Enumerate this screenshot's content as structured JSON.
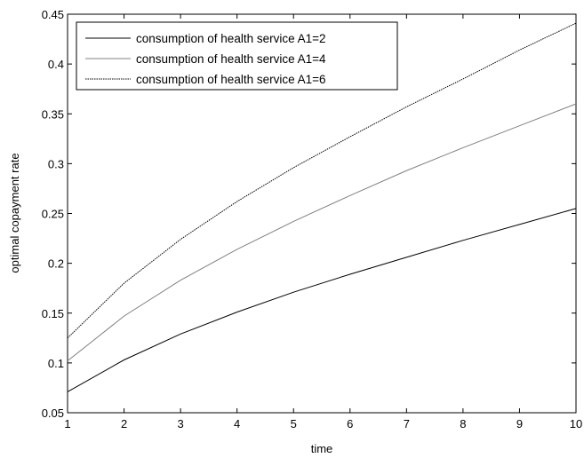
{
  "chart_data": {
    "type": "line",
    "xlabel": "time",
    "ylabel": "optimal copayment rate",
    "xlim": [
      1,
      10
    ],
    "ylim": [
      0.05,
      0.45
    ],
    "xticks": [
      "1",
      "2",
      "3",
      "4",
      "5",
      "6",
      "7",
      "8",
      "9",
      "10"
    ],
    "yticks": [
      "0.05",
      "0.1",
      "0.15",
      "0.2",
      "0.25",
      "0.3",
      "0.35",
      "0.4",
      "0.45"
    ],
    "grid": false,
    "legend_position": "top-left",
    "x": [
      1,
      2,
      3,
      4,
      5,
      6,
      7,
      8,
      9,
      10
    ],
    "series": [
      {
        "name": "consumption of health service A1=2",
        "color": "#000000",
        "values": [
          0.071,
          0.103,
          0.129,
          0.151,
          0.171,
          0.189,
          0.206,
          0.223,
          0.239,
          0.255
        ]
      },
      {
        "name": "consumption of health service A1=4",
        "color": "#808080",
        "values": [
          0.102,
          0.147,
          0.183,
          0.214,
          0.242,
          0.268,
          0.293,
          0.316,
          0.338,
          0.36
        ]
      },
      {
        "name": "consumption of health service A1=6",
        "color": "#000000",
        "values": [
          0.125,
          0.18,
          0.224,
          0.262,
          0.296,
          0.327,
          0.357,
          0.385,
          0.414,
          0.441
        ]
      }
    ]
  }
}
